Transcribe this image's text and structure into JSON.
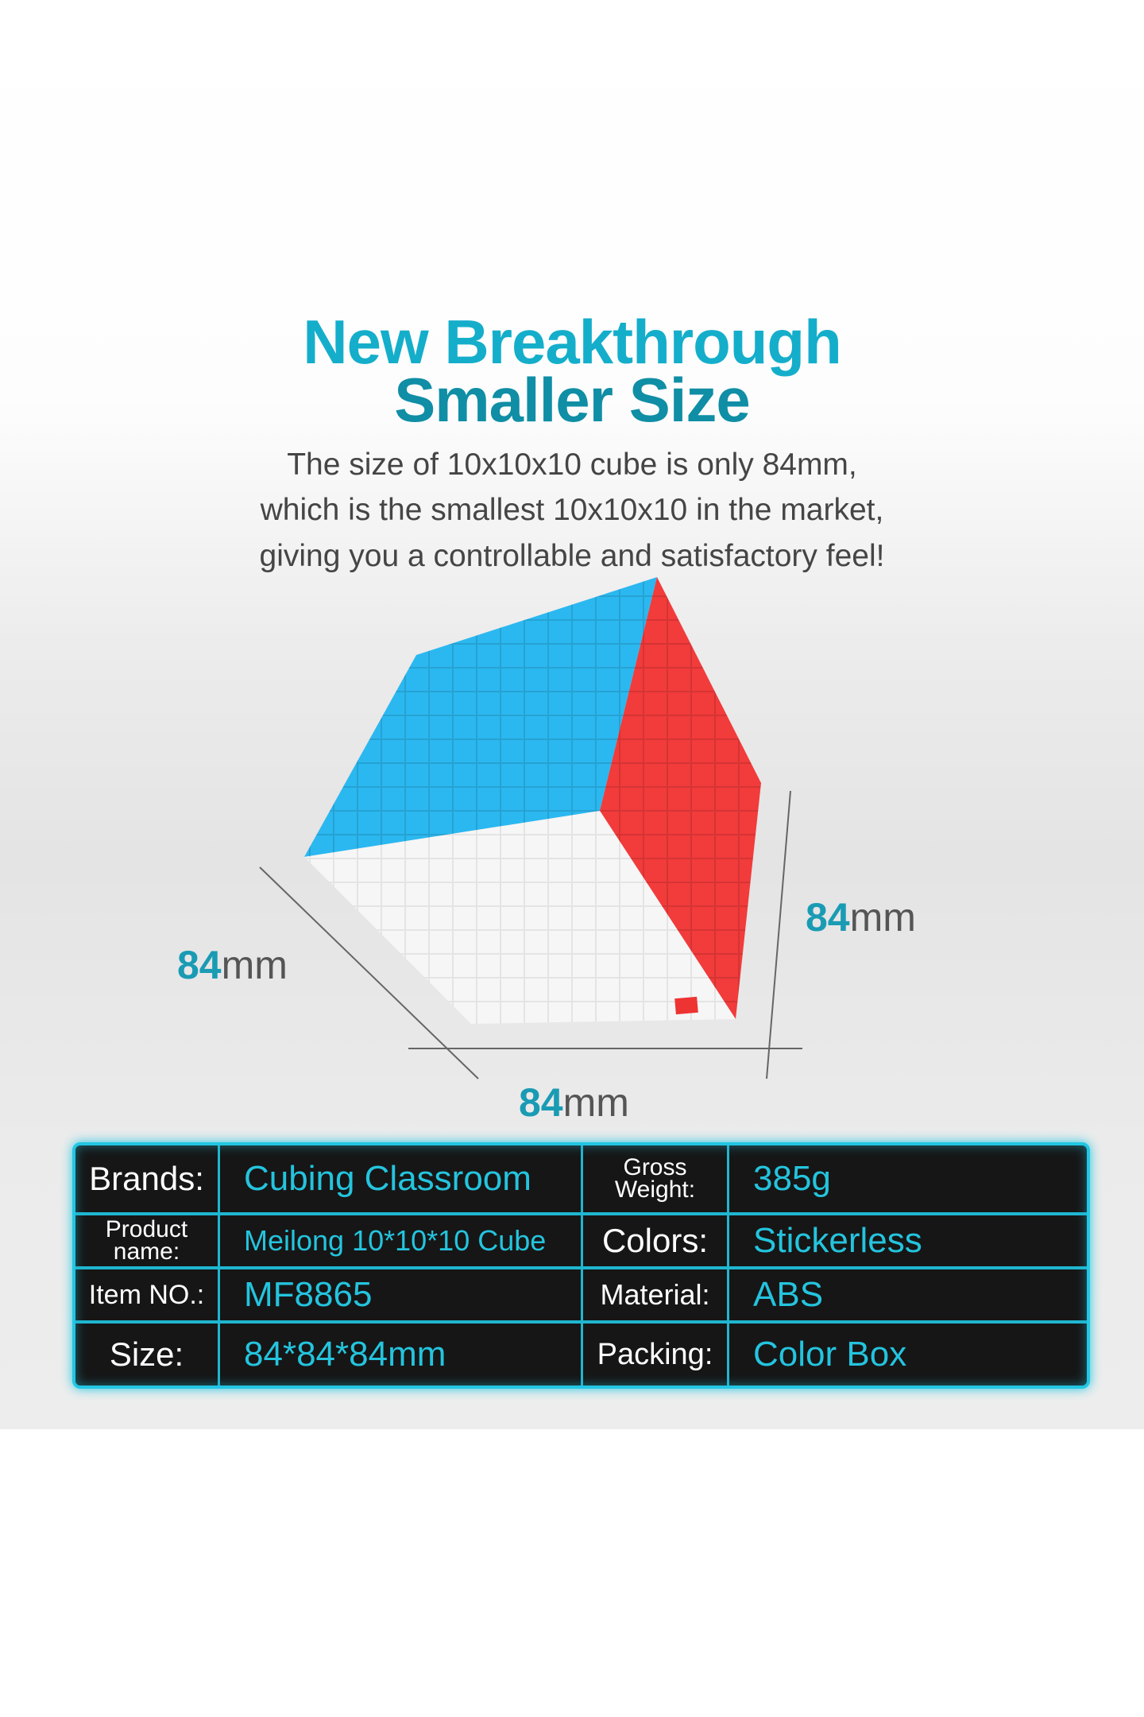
{
  "heading": {
    "line1": "New Breakthrough",
    "line2": "Smaller Size"
  },
  "description": [
    "The size of 10x10x10 cube is only 84mm,",
    "which is the smallest 10x10x10 in the market,",
    "giving you a controllable and satisfactory feel!"
  ],
  "dimensions": {
    "left": {
      "value": "84",
      "unit": "mm"
    },
    "right": {
      "value": "84",
      "unit": "mm"
    },
    "bottom": {
      "value": "84",
      "unit": "mm"
    }
  },
  "specs": [
    {
      "label": "Brands:",
      "value": "Cubing Classroom",
      "label2": "Gross Weight:",
      "value2": "385g"
    },
    {
      "label": "Product name:",
      "value": "Meilong 10*10*10 Cube",
      "label2": "Colors:",
      "value2": "Stickerless"
    },
    {
      "label": "Item NO.:",
      "value": "MF8865",
      "label2": "Material:",
      "value2": "ABS"
    },
    {
      "label": "Size:",
      "value": "84*84*84mm",
      "label2": "Packing:",
      "value2": "Color Box"
    }
  ],
  "colors": {
    "accent": "#14aecb",
    "cube_top": "#2bb8f0",
    "cube_right": "#f23b3b",
    "cube_front": "#f7f7f7"
  }
}
